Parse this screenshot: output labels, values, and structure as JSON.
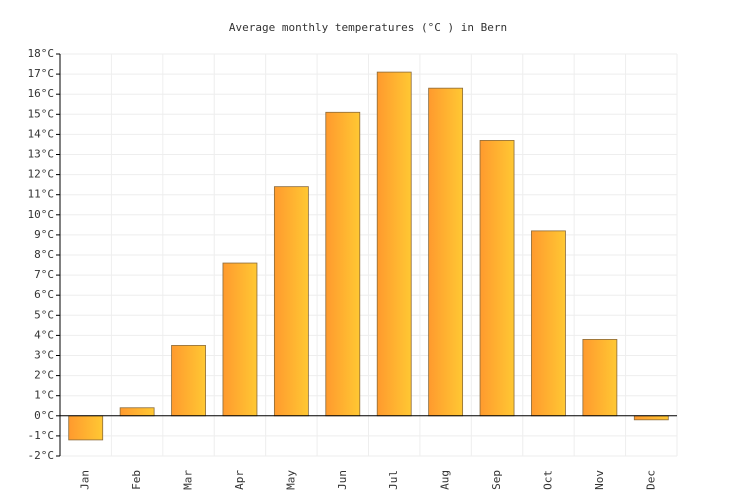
{
  "chart_data": {
    "type": "bar",
    "title": "Average monthly temperatures (°C ) in Bern",
    "categories": [
      "Jan",
      "Feb",
      "Mar",
      "Apr",
      "May",
      "Jun",
      "Jul",
      "Aug",
      "Sep",
      "Oct",
      "Nov",
      "Dec"
    ],
    "values": [
      -1.2,
      0.4,
      3.5,
      7.6,
      11.4,
      15.1,
      17.1,
      16.3,
      13.7,
      9.2,
      3.8,
      -0.2
    ],
    "color": "#ff9a2e",
    "ylim": [
      -2,
      18
    ],
    "yticks": [
      {
        "value": -2,
        "label": "-2°C"
      },
      {
        "value": -1,
        "label": "-1°C"
      },
      {
        "value": 0,
        "label": "0°C"
      },
      {
        "value": 1,
        "label": "1°C"
      },
      {
        "value": 2,
        "label": "2°C"
      },
      {
        "value": 3,
        "label": "3°C"
      },
      {
        "value": 4,
        "label": "4°C"
      },
      {
        "value": 5,
        "label": "5°C"
      },
      {
        "value": 6,
        "label": "6°C"
      },
      {
        "value": 7,
        "label": "7°C"
      },
      {
        "value": 8,
        "label": "8°C"
      },
      {
        "value": 9,
        "label": "9°C"
      },
      {
        "value": 10,
        "label": "10°C"
      },
      {
        "value": 11,
        "label": "11°C"
      },
      {
        "value": 12,
        "label": "12°C"
      },
      {
        "value": 13,
        "label": "13°C"
      },
      {
        "value": 14,
        "label": "14°C"
      },
      {
        "value": 15,
        "label": "15°C"
      },
      {
        "value": 16,
        "label": "16°C"
      },
      {
        "value": 17,
        "label": "17°C"
      },
      {
        "value": 18,
        "label": "18°C"
      }
    ],
    "grid": true
  }
}
